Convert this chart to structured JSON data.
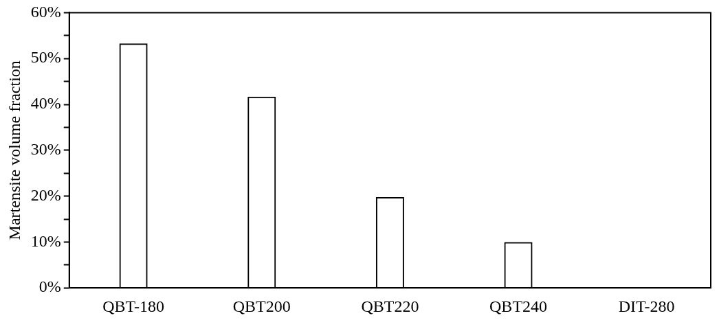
{
  "chart_data": {
    "type": "bar",
    "ylabel": "Martensite volume fraction",
    "categories": [
      "QBT-180",
      "QBT200",
      "QBT220",
      "QBT240",
      "DIT-280"
    ],
    "values": [
      53.3,
      41.7,
      19.8,
      10.0,
      0
    ],
    "color": "#000000",
    "ylim": [
      0,
      60
    ],
    "yticks": [
      {
        "value": 0,
        "label": "0%"
      },
      {
        "value": 5,
        "label": null
      },
      {
        "value": 10,
        "label": "10%"
      },
      {
        "value": 15,
        "label": null
      },
      {
        "value": 20,
        "label": "20%"
      },
      {
        "value": 25,
        "label": null
      },
      {
        "value": 30,
        "label": "30%"
      },
      {
        "value": 35,
        "label": null
      },
      {
        "value": 40,
        "label": "40%"
      },
      {
        "value": 45,
        "label": null
      },
      {
        "value": 50,
        "label": "50%"
      },
      {
        "value": 55,
        "label": null
      },
      {
        "value": 60,
        "label": "60%"
      }
    ],
    "grid": false,
    "legend": false
  }
}
